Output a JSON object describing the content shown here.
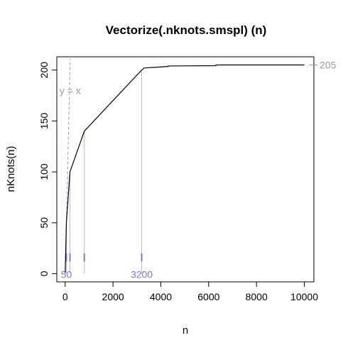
{
  "chart_data": {
    "type": "line",
    "title": "Vectorize(.nknots.smspl) (n)",
    "xlabel": "n",
    "ylabel": "nKnots(n)",
    "xlim": [
      -350,
      10400
    ],
    "ylim": [
      -8,
      213
    ],
    "xticks": [
      0,
      2000,
      4000,
      6000,
      8000,
      10000
    ],
    "xtick_labels": [
      "0",
      "2000",
      "4000",
      "6000",
      "8000",
      "10000"
    ],
    "yticks": [
      0,
      50,
      100,
      150,
      200
    ],
    "ytick_labels": [
      "0",
      "50",
      "100",
      "150",
      "200"
    ],
    "grid": false,
    "series": [
      {
        "color": "#000000",
        "x": [
          1,
          50,
          200,
          800,
          3200,
          3300,
          4300,
          4301,
          6300,
          6301,
          10000
        ],
        "y": [
          1,
          50,
          100,
          140,
          200,
          202,
          203.5,
          204,
          204.3,
          205,
          205
        ]
      }
    ],
    "reference_line": {
      "label": "y = x",
      "color": "#9a9a9a",
      "x": [
        0,
        211
      ],
      "y": [
        0,
        211
      ]
    },
    "end_marker": {
      "label": "205",
      "y": 205,
      "color": "#9a9a9a"
    },
    "vertical_markers": {
      "color": "#7b7bd0",
      "lines": [
        {
          "x": 50,
          "y_top": 50
        },
        {
          "x": 200,
          "y_top": 100
        },
        {
          "x": 800,
          "y_top": 140
        },
        {
          "x": 3200,
          "y_top": 200
        }
      ],
      "labels": [
        {
          "text": "50",
          "x": 50
        },
        {
          "text": "3200",
          "x": 3200
        }
      ]
    }
  }
}
